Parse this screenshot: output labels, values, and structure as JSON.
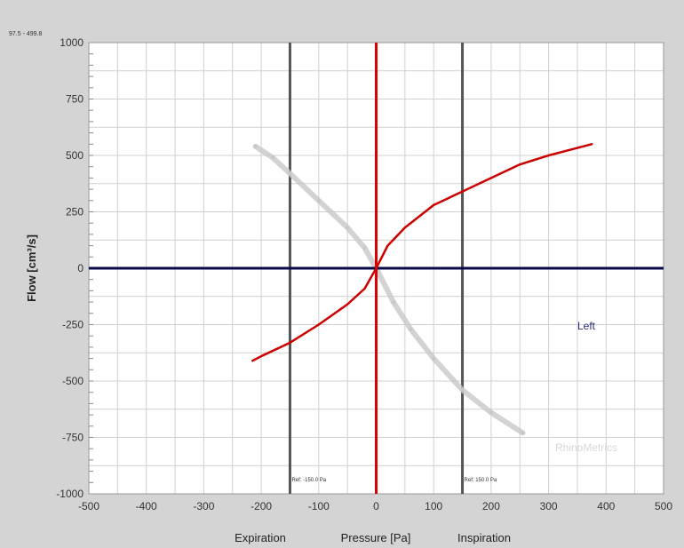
{
  "chart_data": {
    "type": "line",
    "title": "",
    "xlabel": "Pressure [Pa]",
    "ylabel": "Flow [cm³/s]",
    "xlim": [
      -500,
      500
    ],
    "ylim": [
      -1000,
      1000
    ],
    "x_ticks": [
      -500,
      -400,
      -300,
      -200,
      -100,
      0,
      100,
      200,
      300,
      400,
      500
    ],
    "y_ticks": [
      -1000,
      -750,
      -500,
      -250,
      0,
      250,
      500,
      750,
      1000
    ],
    "grid": true,
    "side_labels": {
      "left": "Expiration",
      "right": "Inspiration"
    },
    "top_corner_text": "97.5 - 499.8",
    "reference_lines": [
      {
        "x": -150,
        "label": "Ref: -150.0 Pa"
      },
      {
        "x": 150,
        "label": "Ref: 150.0 Pa"
      }
    ],
    "annotation": "Left",
    "watermark": "RhinoMetrics",
    "series": [
      {
        "color": "#cc0000",
        "x": [
          -215,
          -200,
          -150,
          -100,
          -50,
          -20,
          0,
          20,
          50,
          100,
          150,
          200,
          250,
          300,
          375
        ],
        "y": [
          -410,
          -390,
          -330,
          -250,
          -160,
          -90,
          0,
          100,
          180,
          280,
          340,
          400,
          460,
          500,
          550
        ]
      },
      {
        "color": "#c8c8c8",
        "x": [
          -210,
          -180,
          -150,
          -100,
          -50,
          -20,
          0,
          30,
          60,
          100,
          150,
          200,
          255
        ],
        "y": [
          540,
          490,
          420,
          300,
          180,
          90,
          0,
          -150,
          -270,
          -400,
          -540,
          -640,
          -730
        ]
      }
    ],
    "colors": {
      "axis_zero_h": "#0a0a4a",
      "axis_zero_v": "#dd0000",
      "ref_lines": "#555555",
      "grid": "#d0d0d0"
    }
  }
}
